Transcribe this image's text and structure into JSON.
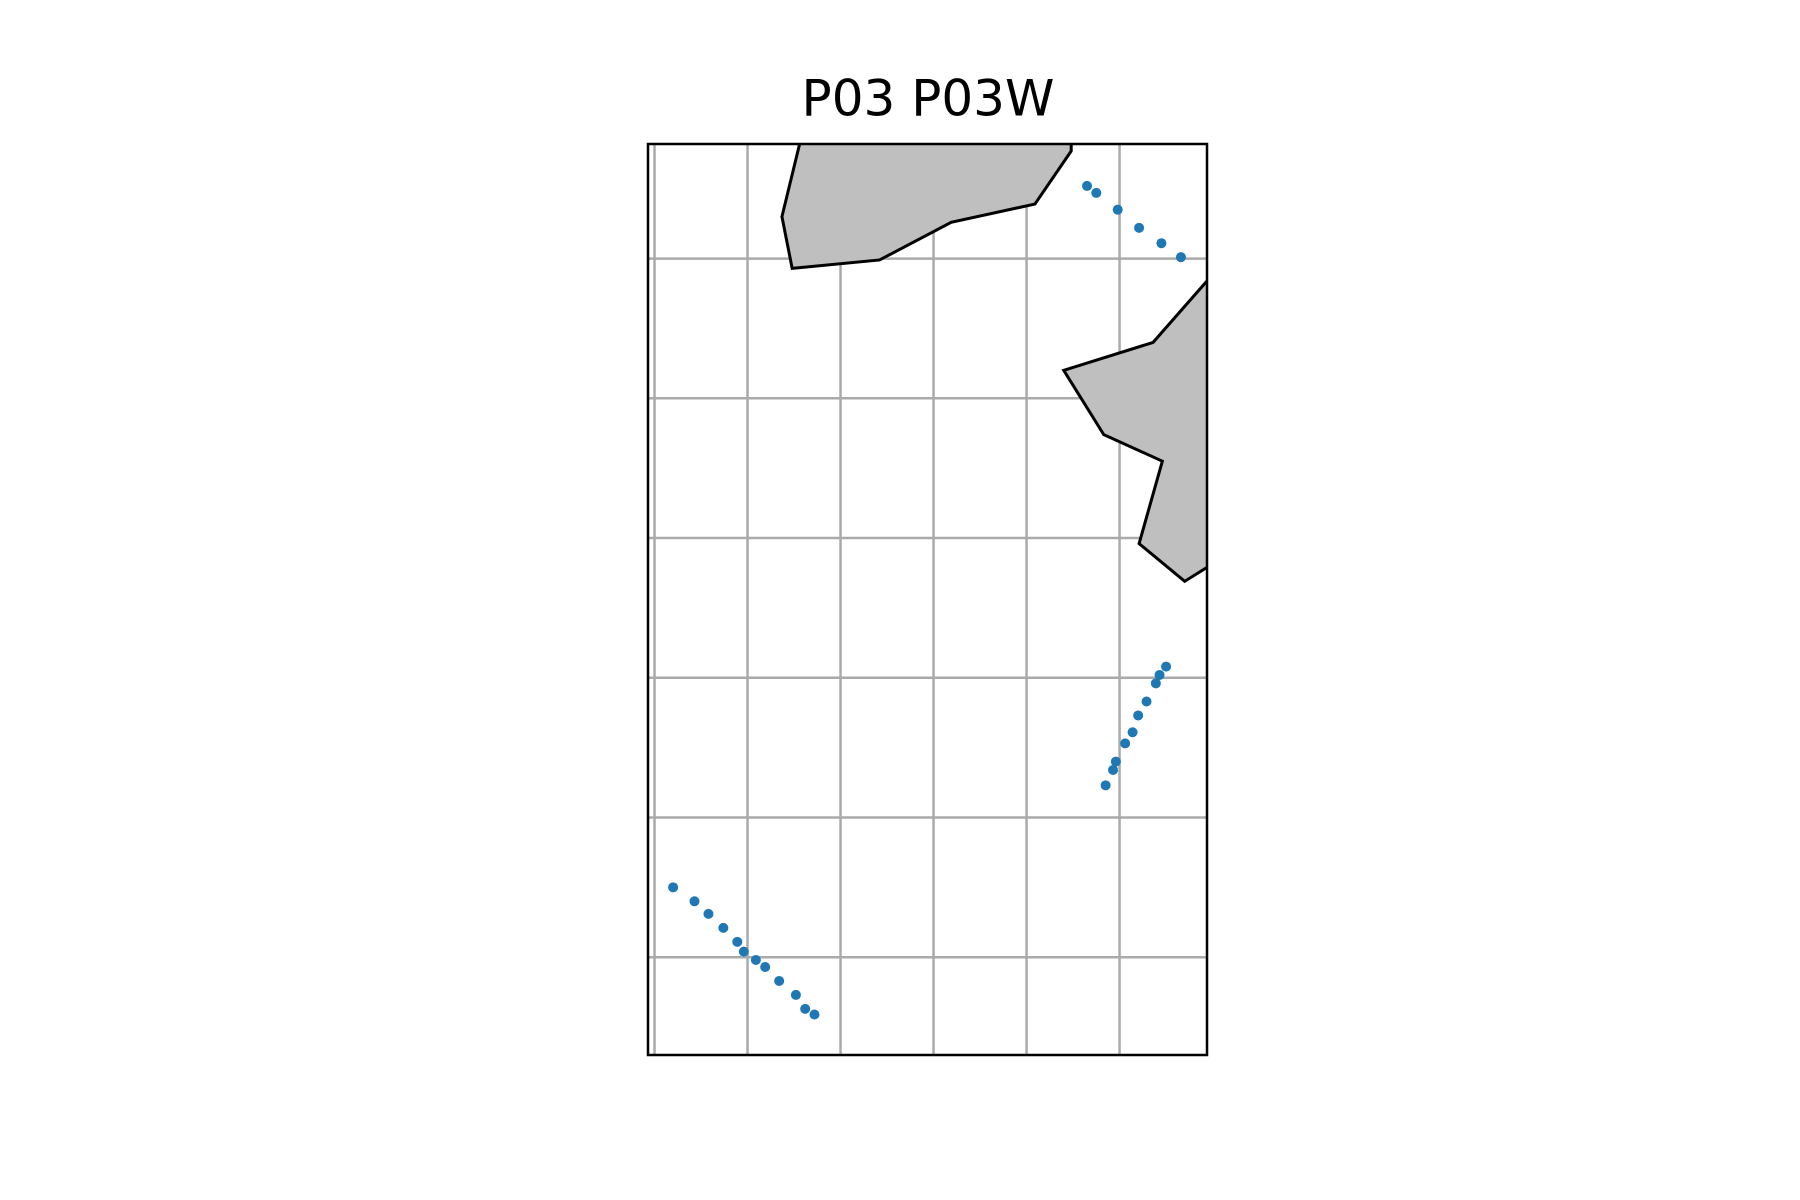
{
  "chart_data": {
    "type": "scatter",
    "title": "P03 P03W",
    "color": "#1f77b4",
    "x": [
      3.65,
      3.75,
      3.98,
      4.21,
      4.45,
      4.66,
      4.5,
      4.43,
      4.39,
      4.29,
      4.2,
      4.14,
      4.06,
      3.96,
      3.93,
      3.85,
      -0.8,
      -0.57,
      -0.42,
      -0.26,
      -0.11,
      -0.04,
      0.09,
      0.19,
      0.34,
      0.52,
      0.62,
      0.72
    ],
    "y": [
      6.52,
      6.47,
      6.35,
      6.22,
      6.11,
      6.01,
      3.08,
      3.02,
      2.96,
      2.83,
      2.73,
      2.61,
      2.53,
      2.4,
      2.34,
      2.23,
      1.5,
      1.4,
      1.31,
      1.21,
      1.11,
      1.04,
      0.98,
      0.93,
      0.83,
      0.73,
      0.63,
      0.59
    ],
    "xlim": [
      -1.07,
      4.94
    ],
    "ylim": [
      0.3,
      6.82
    ],
    "xticks": [
      -1,
      0,
      1,
      2,
      3,
      4
    ],
    "yticks": [
      1,
      2,
      3,
      4,
      5,
      6
    ],
    "grid": true,
    "land_color": "#bfbfbf",
    "land": [
      {
        "x": [
          0.56,
          0.37,
          0.48,
          1.42,
          2.19,
          3.09,
          3.48,
          3.48
        ],
        "y": [
          6.82,
          6.3,
          5.93,
          5.99,
          6.26,
          6.39,
          6.77,
          6.82
        ]
      },
      {
        "x": [
          4.94,
          4.36,
          3.4,
          3.83,
          4.46,
          4.21,
          4.7,
          4.94
        ],
        "y": [
          5.84,
          5.4,
          5.2,
          4.74,
          4.55,
          3.96,
          3.69,
          3.79
        ]
      }
    ]
  }
}
